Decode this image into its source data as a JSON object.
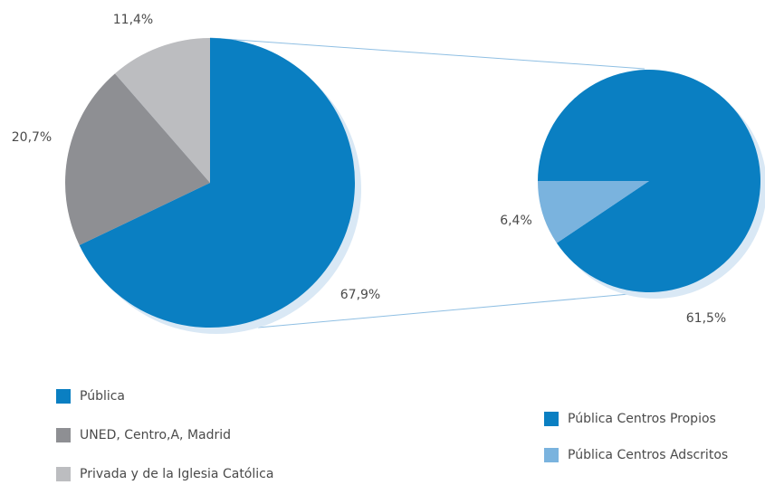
{
  "chart_data": [
    {
      "type": "pie",
      "categories": [
        "Pública",
        "UNED, Centro,A, Madrid",
        "Privada y de la Iglesia Católica"
      ],
      "values": [
        67.9,
        20.7,
        11.4
      ],
      "value_labels": [
        "67,9%",
        "20,7%",
        "11,4%"
      ],
      "colors": [
        "#0a7fc2",
        "#8e8f93",
        "#bcbdc0"
      ]
    },
    {
      "type": "pie",
      "categories": [
        "Pública Centros Propios",
        "Pública Centros Adscritos"
      ],
      "values": [
        61.5,
        6.4
      ],
      "value_labels": [
        "61,5%",
        "6,4%"
      ],
      "colors": [
        "#0a7fc2",
        "#7ab3de"
      ]
    }
  ]
}
